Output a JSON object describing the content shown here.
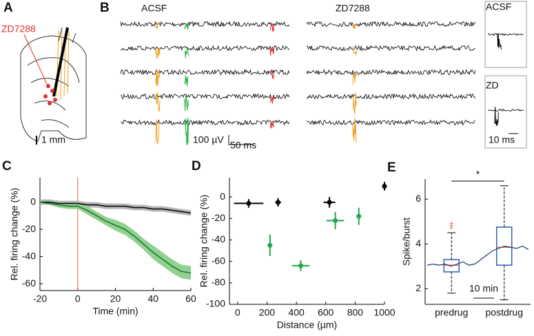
{
  "panels": {
    "A": {
      "letter": "A",
      "drug": "ZD7288",
      "scale": "1 mm"
    },
    "B": {
      "letter": "B",
      "left": "ACSF",
      "right": "ZD7288",
      "scale_v": "100 µV",
      "scale_t": "50 ms",
      "inset_top": "ACSF",
      "inset_bottom": "ZD",
      "inset_scale": "10 ms"
    }
  },
  "chart_data": [
    {
      "type": "line",
      "panel": "C",
      "xlabel": "Time  (min)",
      "ylabel": "Rel. firing change (%)",
      "x": [
        -20,
        -15,
        -10,
        -5,
        0,
        5,
        10,
        15,
        20,
        25,
        30,
        35,
        40,
        45,
        50,
        55,
        60
      ],
      "series": [
        {
          "color": "#000000",
          "band": "#b5b5b5",
          "values": [
            0,
            0,
            -1,
            -1,
            -1,
            -2,
            -2,
            -3,
            -3,
            -3,
            -4,
            -4,
            -5,
            -5,
            -6,
            -7,
            -8
          ],
          "errors": [
            2,
            2,
            2,
            2,
            2,
            2,
            2,
            2,
            2,
            2,
            2,
            2,
            2,
            2,
            2,
            2,
            2
          ]
        },
        {
          "color": "#1f6b2a",
          "band": "#8fd18f",
          "values": [
            0,
            -1,
            -2,
            -3,
            -3,
            -6,
            -10,
            -14,
            -17,
            -20,
            -25,
            -31,
            -37,
            -42,
            -47,
            -51,
            -52
          ],
          "errors": [
            1,
            1,
            2,
            2,
            2,
            3,
            3,
            3,
            4,
            4,
            4,
            4,
            5,
            5,
            5,
            5,
            5
          ]
        }
      ],
      "vline": 0,
      "vline_color": "#e8584a",
      "xlim": [
        -20,
        60
      ],
      "ylim": [
        -65,
        18
      ],
      "xticks": [
        -20,
        0,
        20,
        40,
        60
      ],
      "yticks": [
        0,
        -20,
        -40,
        -60
      ]
    },
    {
      "type": "scatter",
      "panel": "D",
      "xlabel": "Distance (µm)",
      "ylabel": "Rel. firing change (%)",
      "series": [
        {
          "color": "#000000",
          "x": [
            75,
            275,
            625,
            1000
          ],
          "values": [
            -6,
            -5,
            -5,
            10
          ],
          "xerr": [
            100,
            20,
            40,
            0
          ],
          "yerr": [
            4,
            4,
            5,
            4
          ]
        },
        {
          "color": "#20a84a",
          "x": [
            220,
            430,
            665,
            825
          ],
          "values": [
            -45,
            -64,
            -22,
            -18
          ],
          "xerr": [
            0,
            60,
            60,
            0
          ],
          "yerr": [
            10,
            5,
            8,
            8
          ]
        }
      ],
      "xlim": [
        -56,
        1000
      ],
      "ylim": [
        -100,
        18
      ],
      "xticks": [
        0,
        200,
        400,
        600,
        800,
        1000
      ],
      "yticks": [
        0,
        -20,
        -40,
        -60,
        -80,
        -100
      ]
    },
    {
      "type": "box",
      "panel": "E",
      "ylabel": "Spike/burst",
      "categories": [
        "predrug",
        "postdrug"
      ],
      "boxes": [
        {
          "min": 1.8,
          "q1": 2.75,
          "median": 3.05,
          "q3": 3.3,
          "max": 4.5,
          "outliers": [
            4.9,
            4.8,
            4.7
          ]
        },
        {
          "min": 1.5,
          "q1": 3.05,
          "median": 3.85,
          "q3": 4.75,
          "max": 6.6,
          "outliers": []
        }
      ],
      "color": "#2b5fb4",
      "median_color": "#e8584a",
      "trace": [
        3.05,
        3.1,
        3.05,
        3.1,
        3.0,
        3.1,
        3.2,
        3.05,
        3.1,
        3.3,
        3.5,
        3.7,
        3.8,
        3.9,
        3.85,
        3.8,
        3.9,
        3.75
      ],
      "trace_color": "#1a3a6b",
      "annotation": "*",
      "scale_label": "10 min",
      "ylim": [
        1.3,
        6.9
      ],
      "yticks": [
        2,
        4,
        6
      ]
    }
  ]
}
